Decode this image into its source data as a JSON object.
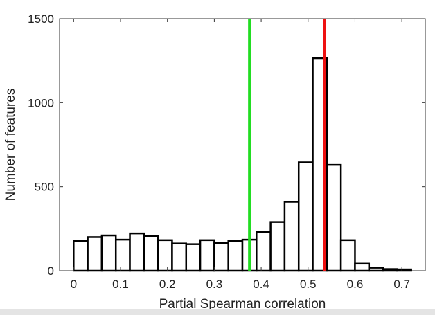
{
  "chart_data": {
    "type": "bar",
    "title": "",
    "xlabel": "Partial Spearman correlation",
    "ylabel": "Number of features",
    "xlim": [
      -0.03,
      0.75
    ],
    "ylim": [
      0,
      1500
    ],
    "xticks": [
      "0",
      "0.1",
      "0.2",
      "0.3",
      "0.4",
      "0.5",
      "0.6",
      "0.7"
    ],
    "xtick_values": [
      0,
      0.1,
      0.2,
      0.3,
      0.4,
      0.5,
      0.6,
      0.7
    ],
    "yticks": [
      "0",
      "500",
      "1000",
      "1500"
    ],
    "ytick_values": [
      0,
      500,
      1000,
      1500
    ],
    "bin_start": 0,
    "bin_width": 0.03,
    "values": [
      178,
      200,
      210,
      185,
      222,
      205,
      182,
      162,
      158,
      182,
      165,
      178,
      185,
      230,
      290,
      410,
      645,
      1265,
      630,
      182,
      42,
      18,
      10,
      8
    ],
    "bar_fill": "#ffffff",
    "bar_edge": "#000000",
    "grid": false,
    "legend": "none",
    "reference_lines": [
      {
        "x": 0.375,
        "color": "#22dd22"
      },
      {
        "x": 0.535,
        "color": "#ee1111"
      }
    ]
  }
}
